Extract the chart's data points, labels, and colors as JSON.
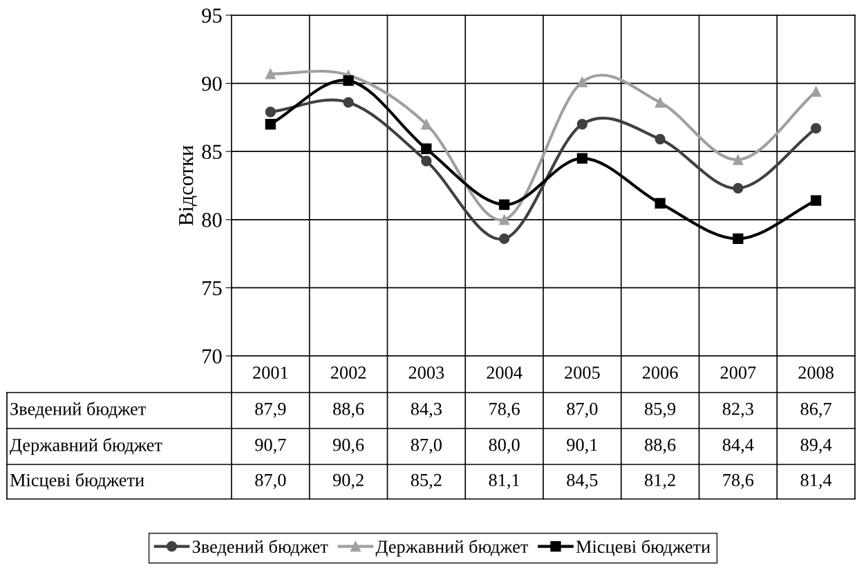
{
  "chart_data": {
    "type": "line",
    "ylabel": "Відсотки",
    "categories": [
      "2001",
      "2002",
      "2003",
      "2004",
      "2005",
      "2006",
      "2007",
      "2008"
    ],
    "ylim": [
      70,
      95
    ],
    "yticks": [
      70,
      75,
      80,
      85,
      90,
      95
    ],
    "grid": true,
    "legend": "bottom",
    "series": [
      {
        "name": "Зведений бюджет",
        "color": "#404040",
        "marker": "circle",
        "values": [
          87.9,
          88.6,
          84.3,
          78.6,
          87.0,
          85.9,
          82.3,
          86.7
        ],
        "value_labels": [
          "87,9",
          "88,6",
          "84,3",
          "78,6",
          "87,0",
          "85,9",
          "82,3",
          "86,7"
        ]
      },
      {
        "name": "Державний бюджет",
        "color": "#a0a0a0",
        "marker": "triangle",
        "values": [
          90.7,
          90.6,
          87.0,
          80.0,
          90.1,
          88.6,
          84.4,
          89.4
        ],
        "value_labels": [
          "90,7",
          "90,6",
          "87,0",
          "80,0",
          "90,1",
          "88,6",
          "84,4",
          "89,4"
        ]
      },
      {
        "name": "Місцеві бюджети",
        "color": "#000000",
        "marker": "square",
        "values": [
          87.0,
          90.2,
          85.2,
          81.1,
          84.5,
          81.2,
          78.6,
          81.4
        ],
        "value_labels": [
          "87,0",
          "90,2",
          "85,2",
          "81,1",
          "84,5",
          "81,2",
          "78,6",
          "81,4"
        ]
      }
    ]
  }
}
